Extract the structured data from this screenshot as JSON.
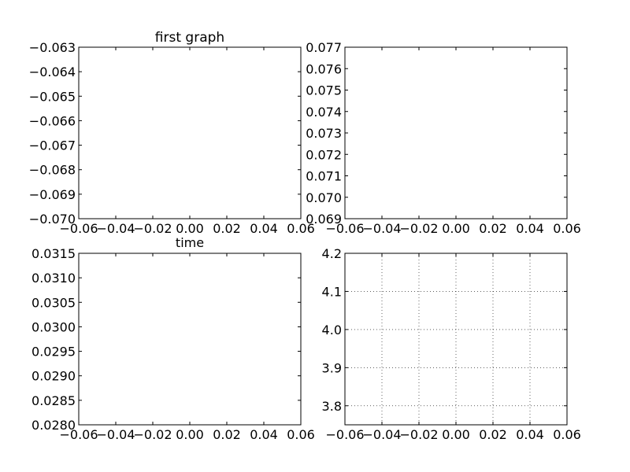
{
  "chart_data": [
    {
      "type": "line",
      "title": "first graph",
      "xlabel": "time",
      "ylabel": "",
      "xlim": [
        -0.06,
        0.06
      ],
      "ylim": [
        -0.07,
        -0.063
      ],
      "grid": false,
      "series": [],
      "xticks": [
        "−0.06",
        "−0.04",
        "−0.02",
        "0.00",
        "0.02",
        "0.04",
        "0.06"
      ],
      "yticks": [
        "−0.063",
        "−0.064",
        "−0.065",
        "−0.066",
        "−0.067",
        "−0.068",
        "−0.069",
        "−0.070"
      ]
    },
    {
      "type": "line",
      "title": "",
      "xlabel": "",
      "ylabel": "",
      "xlim": [
        -0.06,
        0.06
      ],
      "ylim": [
        0.069,
        0.077
      ],
      "grid": false,
      "series": [],
      "xticks": [
        "−0.06",
        "−0.04",
        "−0.02",
        "0.00",
        "0.02",
        "0.04",
        "0.06"
      ],
      "yticks": [
        "0.077",
        "0.076",
        "0.075",
        "0.074",
        "0.073",
        "0.072",
        "0.071",
        "0.070",
        "0.069"
      ]
    },
    {
      "type": "line",
      "title": "",
      "xlabel": "",
      "ylabel": "",
      "xlim": [
        -0.06,
        0.06
      ],
      "ylim": [
        0.028,
        0.0315
      ],
      "grid": false,
      "series": [],
      "xticks": [
        "−0.06",
        "−0.04",
        "−0.02",
        "0.00",
        "0.02",
        "0.04",
        "0.06"
      ],
      "yticks": [
        "0.0315",
        "0.0310",
        "0.0305",
        "0.0300",
        "0.0295",
        "0.0290",
        "0.0285",
        "0.0280"
      ]
    },
    {
      "type": "line",
      "title": "",
      "xlabel": "",
      "ylabel": "",
      "xlim": [
        -0.06,
        0.06
      ],
      "ylim": [
        3.75,
        4.2
      ],
      "grid": true,
      "series": [],
      "xticks": [
        "−0.06",
        "−0.04",
        "−0.02",
        "0.00",
        "0.02",
        "0.04",
        "0.06"
      ],
      "yticks": [
        "4.2",
        "4.1",
        "4.0",
        "3.9",
        "3.8"
      ]
    }
  ]
}
